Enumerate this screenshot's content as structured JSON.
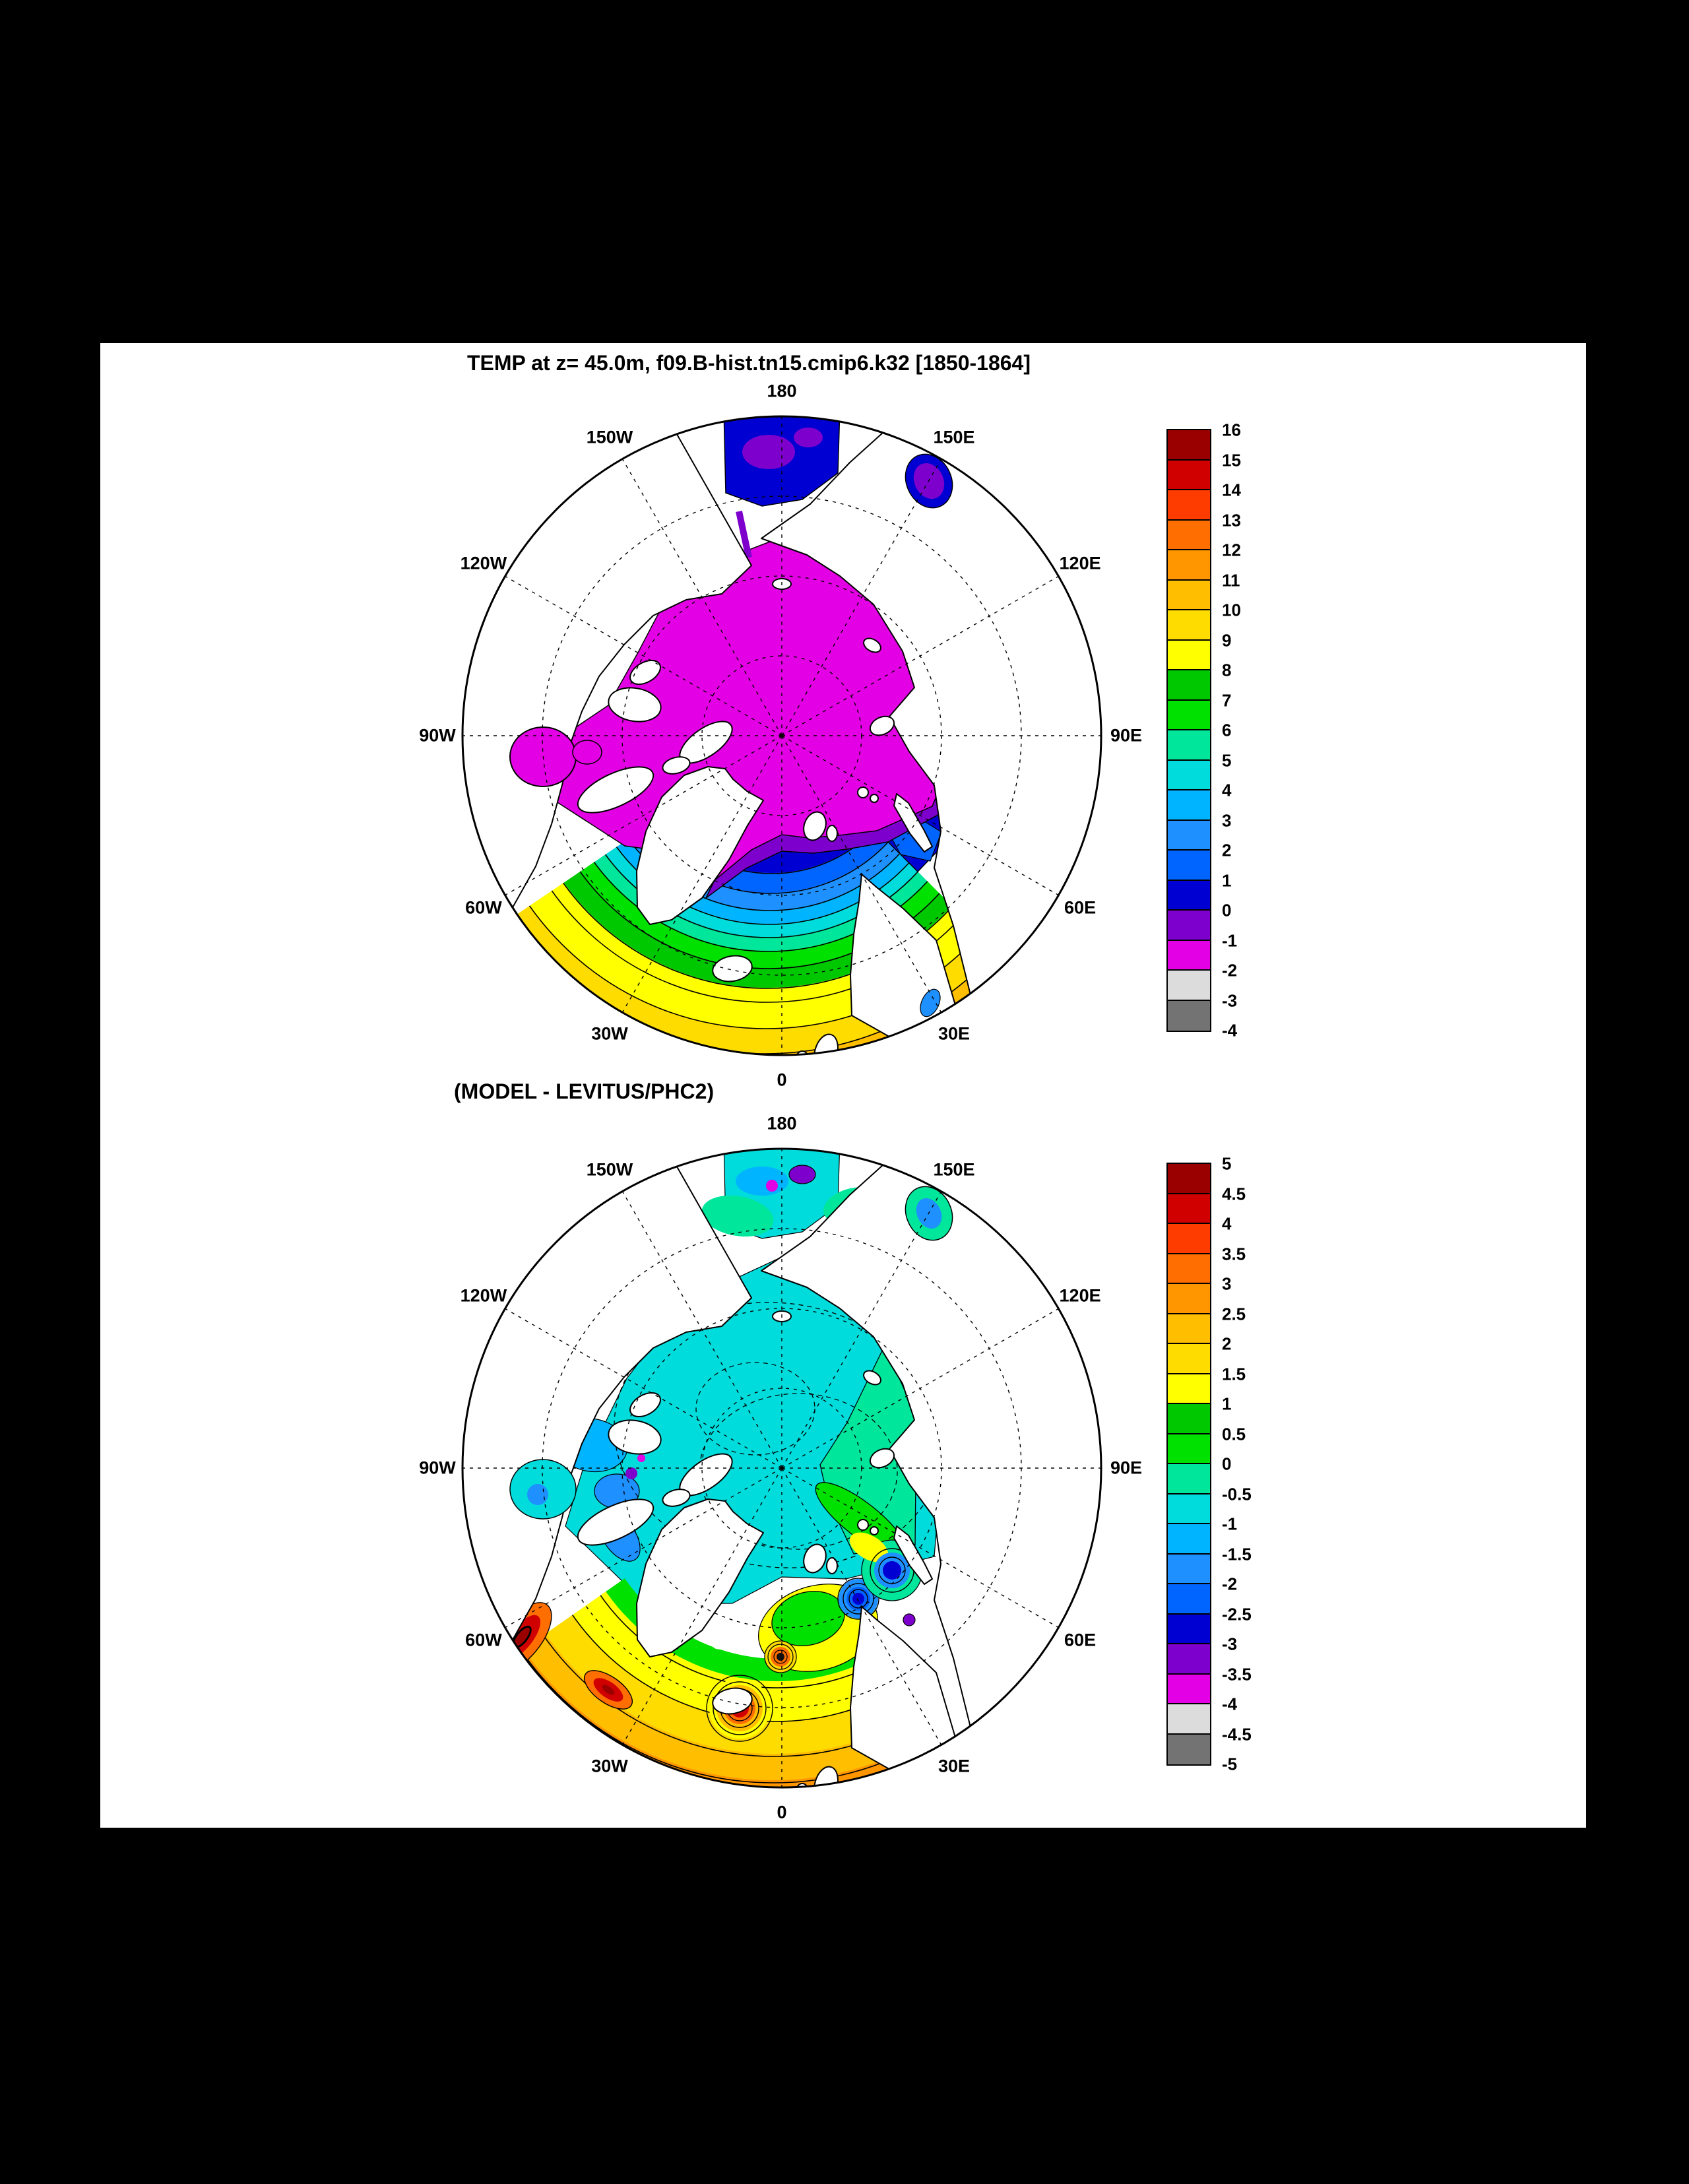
{
  "page": {
    "background": "#000000",
    "panel_background": "#ffffff"
  },
  "palette": {
    "order": "highest value interval first",
    "colors": [
      "#9b0000",
      "#d10000",
      "#ff3c00",
      "#ff6e00",
      "#ff9600",
      "#ffbe00",
      "#ffdc00",
      "#ffff00",
      "#00c800",
      "#00e100",
      "#00e69b",
      "#00dcdc",
      "#00b4ff",
      "#1e90ff",
      "#0064ff",
      "#0000d2",
      "#7d00cd",
      "#e400e4",
      "#dcdcdc",
      "#737373"
    ],
    "land_color": "#ffffff",
    "outline_color": "#000000"
  },
  "panels": [
    {
      "id": "top",
      "title": "TEMP at z=  45.0m, f09.B-hist.tn15.cmip6.k32 [1850-1864]",
      "meridian_labels": [
        "180",
        "150E",
        "120E",
        "90E",
        "60E",
        "30E",
        "0",
        "30W",
        "60W",
        "90W",
        "120W",
        "150W"
      ],
      "colorbar": {
        "side": "right",
        "tick_labels": [
          "16",
          "15",
          "14",
          "13",
          "12",
          "11",
          "10",
          "9",
          "8",
          "7",
          "6",
          "5",
          "4",
          "3",
          "2",
          "1",
          "0",
          "-1",
          "-2",
          "-3",
          "-4"
        ]
      }
    },
    {
      "id": "bottom",
      "title": "(MODEL - LEVITUS/PHC2)",
      "meridian_labels": [
        "180",
        "150E",
        "120E",
        "90E",
        "60E",
        "30E",
        "0",
        "30W",
        "60W",
        "90W",
        "120W",
        "150W"
      ],
      "colorbar": {
        "side": "right",
        "tick_labels": [
          "5",
          "4.5",
          "4",
          "3.5",
          "3",
          "2.5",
          "2",
          "1.5",
          "1",
          "0.5",
          "0",
          "-0.5",
          "-1",
          "-1.5",
          "-2",
          "-2.5",
          "-3",
          "-3.5",
          "-4",
          "-4.5",
          "-5"
        ]
      }
    }
  ],
  "chart_data": [
    {
      "type": "heatmap",
      "subtype": "polar-stereographic filled-contour map, North Pole centered, outer edge near 50N",
      "title": "TEMP at z=  45.0m, f09.B-hist.tn15.cmip6.k32 [1850-1864]",
      "variable": "ocean potential temperature at 45.0 m depth",
      "units": "degC",
      "meridian_labels_clockwise_from_top": [
        "180",
        "150E",
        "120E",
        "90E",
        "60E",
        "30E",
        "0",
        "30W",
        "60W",
        "90W",
        "120W",
        "150W"
      ],
      "graticule": {
        "meridian_spacing_deg": 30,
        "latitude_circles": [
          "80N",
          "70N",
          "60N"
        ],
        "style": "dashed"
      },
      "contour_levels": [
        -4,
        -3,
        -2,
        -1,
        0,
        1,
        2,
        3,
        4,
        5,
        6,
        7,
        8,
        9,
        10,
        11,
        12,
        13,
        14,
        15,
        16
      ],
      "colorbar_tick_labels_top_to_bottom": [
        "16",
        "15",
        "14",
        "13",
        "12",
        "11",
        "10",
        "9",
        "8",
        "7",
        "6",
        "5",
        "4",
        "3",
        "2",
        "1",
        "0",
        "-1",
        "-2",
        "-3",
        "-4"
      ],
      "palette_high_to_low": [
        "#9b0000",
        "#d10000",
        "#ff3c00",
        "#ff6e00",
        "#ff9600",
        "#ffbe00",
        "#ffdc00",
        "#ffff00",
        "#00c800",
        "#00e100",
        "#00e69b",
        "#00dcdc",
        "#00b4ff",
        "#1e90ff",
        "#0064ff",
        "#0000d2",
        "#7d00cd",
        "#e400e4",
        "#dcdcdc",
        "#737373"
      ],
      "features": [
        "Entire central Arctic Ocean in the -2 to -1 degC bin (magenta), including Canadian Archipelago channels, Baffin Bay, Hudson Bay and the Siberian shelf seas",
        "Narrow -1 to 0 degC (violet) and 0 to 1 degC (dark blue) bands across the Kara and Barents Seas and north of the Nordic Seas",
        "Tightly packed 1-8 degC contours (blue through green) across the Nordic Seas between Greenland and Norway",
        "Broad 8-10 degC (yellow)North Atlantic south of Iceland, reaching 10-13 degC (orange) at the southern map edge",
        "Bering Sea near the map top in the 0-1 degC (dark blue) bin with -1 to 0 degC (violet) patches; Sea of Okhotsk similar",
        "Cold magenta tongue of the East Greenland Current extending south along east Greenland"
      ]
    },
    {
      "type": "heatmap",
      "subtype": "polar-stereographic filled-contour difference map, same projection as top panel",
      "title": "(MODEL - LEVITUS/PHC2)",
      "variable": "model minus Levitus/PHC2 observed temperature at 45.0 m depth",
      "units": "degC",
      "meridian_labels_clockwise_from_top": [
        "180",
        "150E",
        "120E",
        "90E",
        "60E",
        "30E",
        "0",
        "30W",
        "60W",
        "90W",
        "120W",
        "150W"
      ],
      "graticule": {
        "meridian_spacing_deg": 30,
        "latitude_circles": [
          "80N",
          "70N",
          "60N"
        ],
        "style": "dashed"
      },
      "contour_levels": [
        -5,
        -4.5,
        -4,
        -3.5,
        -3,
        -2.5,
        -2,
        -1.5,
        -1,
        -0.5,
        0,
        0.5,
        1,
        1.5,
        2,
        2.5,
        3,
        3.5,
        4,
        4.5,
        5
      ],
      "colorbar_tick_labels_top_to_bottom": [
        "5",
        "4.5",
        "4",
        "3.5",
        "3",
        "2.5",
        "2",
        "1.5",
        "1",
        "0.5",
        "0",
        "-0.5",
        "-1",
        "-1.5",
        "-2",
        "-2.5",
        "-3",
        "-3.5",
        "-4",
        "-4.5",
        "-5"
      ],
      "palette_high_to_low": [
        "#9b0000",
        "#d10000",
        "#ff3c00",
        "#ff6e00",
        "#ff9600",
        "#ffbe00",
        "#ffdc00",
        "#ffff00",
        "#00c800",
        "#00e100",
        "#00e69b",
        "#00dcdc",
        "#00b4ff",
        "#1e90ff",
        "#0064ff",
        "#0000d2",
        "#7d00cd",
        "#e400e4",
        "#dcdcdc",
        "#737373"
      ],
      "features": [
        "Central Arctic mostly -1 to -0.5 degC (cyan) bias with 0 to -0.5 degC (green) over the East Siberian and Laptev shelf side",
        "Scattered -1.5 to -3 degC (blue) patches on the Canadian/Beaufort side, in Baffin Bay and Davis Strait, with small -3.5 to -4 degC (violet/magenta) spots",
        "Closed-contour bullseyes in the Nordic and Barents Seas: cool blue centers near Svalbard/Barents and warm yellow-orange centers in the Norwegian Sea",
        "Strong warm bias +2 to +5 degC (orange to dark red bullseyes) in the subpolar North Atlantic: south of Iceland, Irminger Sea, and off Newfoundland near the map edge",
        "Dashed contours over the weak negative anomaly of the central Arctic"
      ]
    }
  ]
}
